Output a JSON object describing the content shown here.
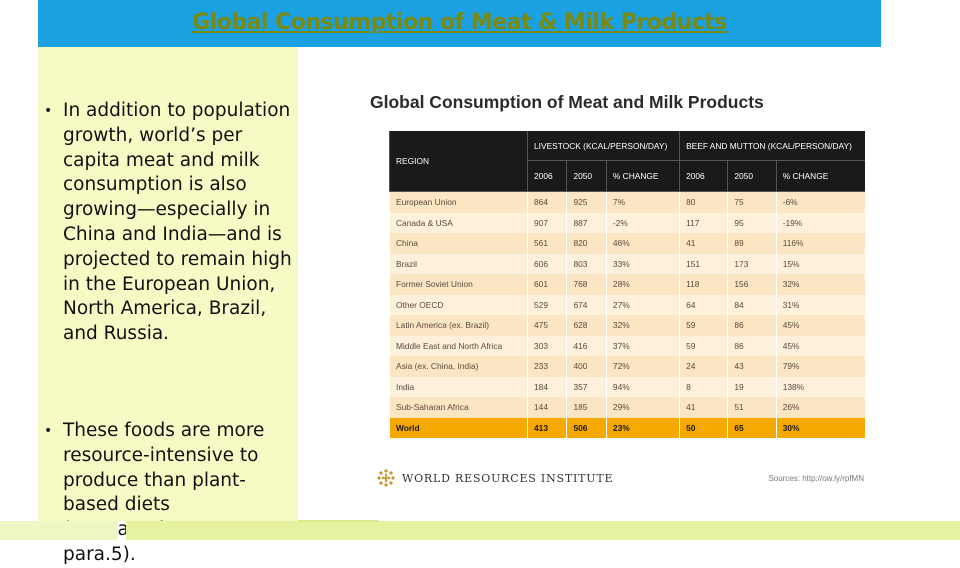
{
  "slide": {
    "title": "Global Consumption of Meat & Milk Products",
    "bullets": [
      "In addition to population growth, world’s per capita meat and milk consumption is also growing—especially in China and India—and is projected to remain high in the European Union, North America, Brazil, and Russia.",
      "These foods are more resource-intensive to produce than plant-based diets (Ranganathan, 2013, para.5)."
    ]
  },
  "figure": {
    "title": "Global Consumption of Meat and Milk Products",
    "table": {
      "region_header": "REGION",
      "group_headers": [
        "LIVESTOCK (KCAL/PERSON/DAY)",
        "BEEF AND MUTTON (KCAL/PERSON/DAY)"
      ],
      "sub_headers": [
        "2006",
        "2050",
        "% CHANGE",
        "2006",
        "2050",
        "% CHANGE"
      ],
      "rows": [
        [
          "European Union",
          "864",
          "925",
          "7%",
          "80",
          "75",
          "-6%"
        ],
        [
          "Canada & USA",
          "907",
          "887",
          "-2%",
          "117",
          "95",
          "-19%"
        ],
        [
          "China",
          "561",
          "820",
          "46%",
          "41",
          "89",
          "116%"
        ],
        [
          "Brazil",
          "606",
          "803",
          "33%",
          "151",
          "173",
          "15%"
        ],
        [
          "Former Soviet Union",
          "601",
          "768",
          "28%",
          "118",
          "156",
          "32%"
        ],
        [
          "Other OECD",
          "529",
          "674",
          "27%",
          "64",
          "84",
          "31%"
        ],
        [
          "Latin America (ex. Brazil)",
          "475",
          "628",
          "32%",
          "59",
          "86",
          "45%"
        ],
        [
          "Middle East and North Africa",
          "303",
          "416",
          "37%",
          "59",
          "86",
          "45%"
        ],
        [
          "Asia (ex. China, India)",
          "233",
          "400",
          "72%",
          "24",
          "43",
          "79%"
        ],
        [
          "India",
          "184",
          "357",
          "94%",
          "8",
          "19",
          "138%"
        ],
        [
          "Sub-Saharan Africa",
          "144",
          "185",
          "29%",
          "41",
          "51",
          "26%"
        ]
      ],
      "world_row": [
        "World",
        "413",
        "506",
        "23%",
        "50",
        "65",
        "30%"
      ]
    },
    "org_name": "WORLD RESOURCES INSTITUTE",
    "source": "Sources: http://ow.ly/rpfMN"
  },
  "colors": {
    "title_bar": "#1ba1e2",
    "title_text": "#7a8a10",
    "panel": "#f6fbc5",
    "table_header": "#1a1a1a",
    "row_accent": "#fbe6c4",
    "world_row": "#f5a800"
  },
  "icons": {
    "logo": "wri-logo-icon"
  }
}
